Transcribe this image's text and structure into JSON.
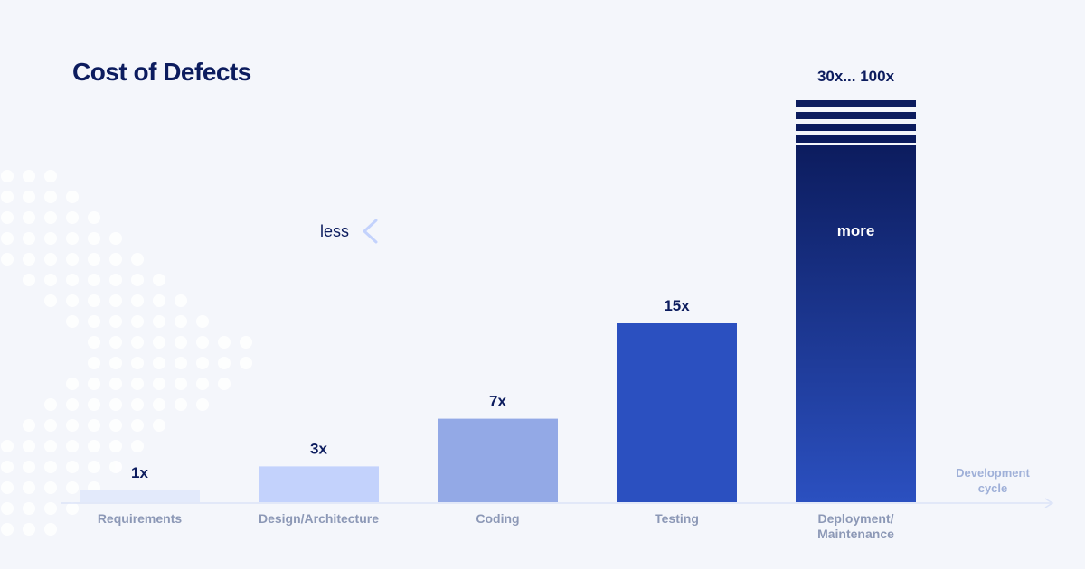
{
  "chart_data": {
    "type": "bar",
    "title": "Cost of Defects",
    "categories": [
      "Requirements",
      "Design/Architecture",
      "Coding",
      "Testing",
      "Deployment/ Maintenance"
    ],
    "category_lines": [
      [
        "Requirements"
      ],
      [
        "Design/Architecture"
      ],
      [
        "Coding"
      ],
      [
        "Testing"
      ],
      [
        "Deployment/",
        "Maintenance"
      ]
    ],
    "values": [
      1,
      3,
      7,
      15,
      30
    ],
    "value_labels": [
      "1x",
      "3x",
      "7x",
      "15x",
      "30x... 100x"
    ],
    "xlabel": "Development cycle",
    "xlabel_lines": [
      "Development",
      "cycle"
    ],
    "ylabel": "",
    "ylim": [
      0,
      30
    ],
    "grid": false,
    "bar_colors": [
      "#e3eafb",
      "#c3d2fc",
      "#93a9e6",
      "#2b50c0",
      "#0c1c5e"
    ],
    "annotation": {
      "left_label": "less",
      "right_label": "more"
    }
  }
}
